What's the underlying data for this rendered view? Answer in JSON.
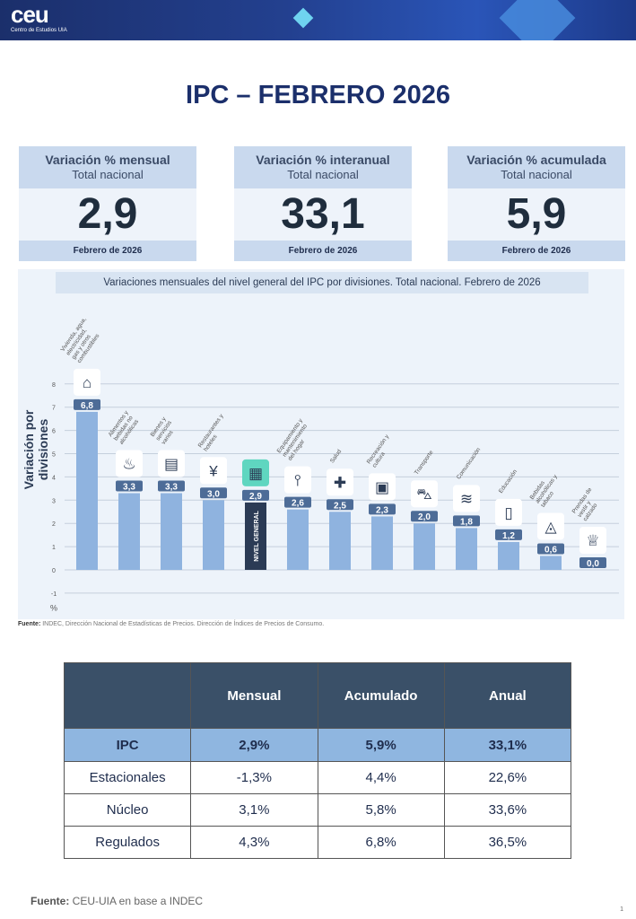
{
  "header": {
    "logo": "ceu",
    "logo_sub": "Centro de Estudios UIA"
  },
  "title": "IPC – FEBRERO 2026",
  "kpis": [
    {
      "title": "Variación % mensual",
      "subtitle": "Total nacional",
      "value": "2,9",
      "footer": "Febrero de 2026"
    },
    {
      "title": "Variación % interanual",
      "subtitle": "Total nacional",
      "value": "33,1",
      "footer": "Febrero de 2026"
    },
    {
      "title": "Variación % acumulada",
      "subtitle": "Total nacional",
      "value": "5,9",
      "footer": "Febrero de 2026"
    }
  ],
  "chart_data": {
    "type": "bar",
    "title": "Variaciones mensuales del nivel general del IPC por divisiones. Total nacional. Febrero de 2026",
    "ylabel": "Variación por divisiones",
    "yunit": "%",
    "ylim": [
      -1,
      8
    ],
    "yticks": [
      "-1",
      "0",
      "1",
      "2",
      "3",
      "4",
      "5",
      "6",
      "7",
      "8"
    ],
    "grid": true,
    "highlight_color": "#2b3b55",
    "bar_color": "#8fb3df",
    "categories": [
      "Vivienda, agua, electricidad, gas y otros combustibles",
      "Alimentos y bebidas no alcohólicas",
      "Bienes y servicios varios",
      "Restaurantes y hoteles",
      "NIVEL GENERAL",
      "Equipamiento y mantenimiento del hogar",
      "Salud",
      "Recreación y cultura",
      "Transporte",
      "Comunicación",
      "Educación",
      "Bebidas alcohólicas y tabaco",
      "Prendas de vestir y calzado"
    ],
    "values": [
      6.8,
      3.3,
      3.3,
      3.0,
      2.9,
      2.6,
      2.5,
      2.3,
      2.0,
      1.8,
      1.2,
      0.6,
      0.0
    ],
    "labels": [
      "6,8",
      "3,3",
      "3,3",
      "3,0",
      "2,9",
      "2,6",
      "2,5",
      "2,3",
      "2,0",
      "1,8",
      "1,2",
      "0,6",
      "0,0"
    ],
    "icons": [
      "house-icon",
      "food-icon",
      "goods-icon",
      "restaurant-icon",
      "basket-icon",
      "tools-icon",
      "health-icon",
      "recreation-icon",
      "car-icon",
      "wifi-icon",
      "book-icon",
      "bottle-icon",
      "shirt-icon"
    ],
    "source_label": "Fuente:",
    "source": "INDEC, Dirección Nacional de Estadísticas de Precios. Dirección de Índices de Precios de Consumo."
  },
  "table": {
    "headers": [
      "",
      "Mensual",
      "Acumulado",
      "Anual"
    ],
    "rows": [
      [
        "IPC",
        "2,9%",
        "5,9%",
        "33,1%"
      ],
      [
        "Estacionales",
        "-1,3%",
        "4,4%",
        "22,6%"
      ],
      [
        "Núcleo",
        "3,1%",
        "5,8%",
        "33,6%"
      ],
      [
        "Regulados",
        "4,3%",
        "6,8%",
        "36,5%"
      ]
    ]
  },
  "footer": {
    "source_label": "Fuente:",
    "source": " CEU-UIA en base a INDEC",
    "page": "1"
  }
}
